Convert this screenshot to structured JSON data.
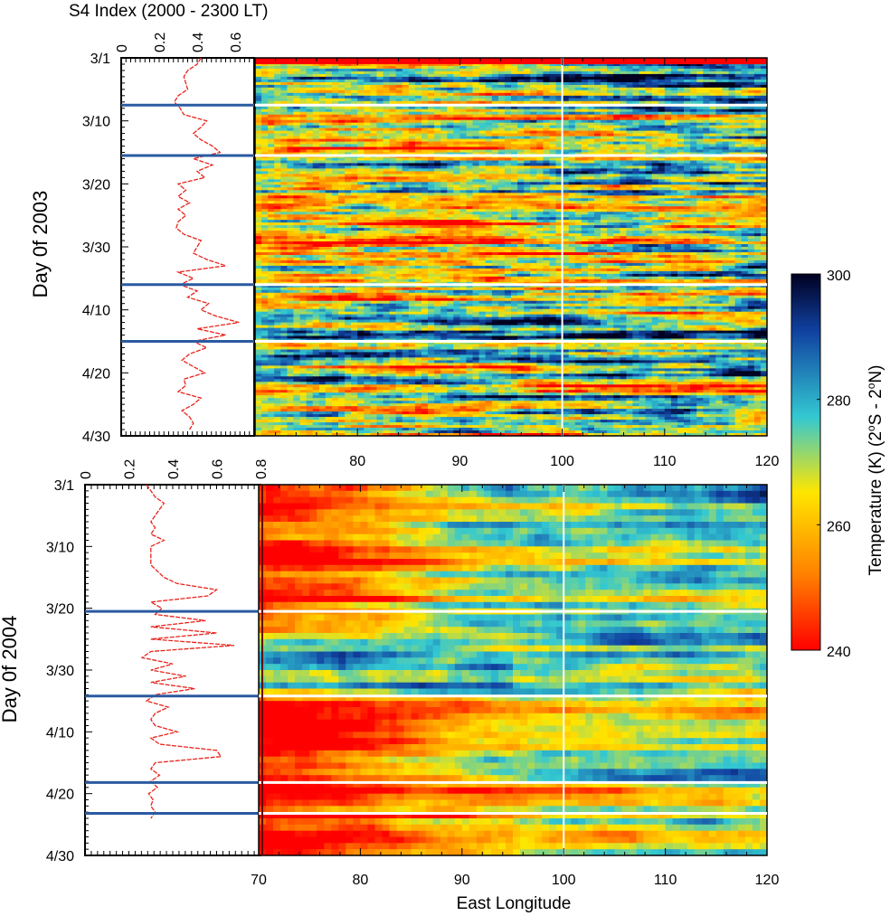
{
  "chart_data": [
    {
      "type": "line",
      "panel": "2003 S4 index",
      "title": "S4 Index (2000 - 2300 LT)",
      "xlabel": "S4 Index (2000 - 2300 LT)",
      "ylabel": "Day 0f 2003",
      "x_ticks": [
        "0",
        "0.2",
        "0.4",
        "0.6"
      ],
      "xlim": [
        0,
        0.7
      ],
      "y_ticks": [
        "3/1",
        "3/10",
        "3/20",
        "3/30",
        "4/10",
        "4/20",
        "4/30"
      ],
      "ylim": [
        0,
        60
      ],
      "series": [
        {
          "color": "#e8231b",
          "x": [
            0.42,
            0.4,
            0.35,
            0.33,
            0.34,
            0.35,
            0.3,
            0.28,
            0.31,
            0.33,
            0.45,
            0.42,
            0.38,
            0.42,
            0.48,
            0.52,
            0.38,
            0.48,
            0.4,
            0.44,
            0.3,
            0.34,
            0.3,
            0.36,
            0.3,
            0.34,
            0.3,
            0.29,
            0.33,
            0.42,
            0.4,
            0.38,
            0.45,
            0.55,
            0.3,
            0.38,
            0.31,
            0.4,
            0.35,
            0.46,
            0.42,
            0.5,
            0.62,
            0.4,
            0.55,
            0.38,
            0.45,
            0.36,
            0.32,
            0.38,
            0.44,
            0.33,
            0.34,
            0.3,
            0.42,
            0.38,
            0.32,
            0.36,
            0.38,
            0.36
          ],
          "y": [
            0,
            1,
            2,
            3,
            4,
            5,
            6,
            7,
            8,
            9,
            10,
            11,
            12,
            13,
            14,
            15,
            16,
            17,
            18,
            19,
            20,
            21,
            22,
            23,
            24,
            25,
            26,
            27,
            28,
            29,
            30,
            31,
            32,
            33,
            34,
            35,
            36,
            37,
            38,
            39,
            40,
            41,
            42,
            43,
            44,
            45,
            46,
            47,
            48,
            49,
            50,
            51,
            52,
            53,
            54,
            55,
            56,
            57,
            58,
            59
          ]
        }
      ],
      "marker_days": [
        7.5,
        15.5,
        36,
        45
      ]
    },
    {
      "type": "heatmap",
      "panel": "2003 temperature",
      "xlabel": "",
      "ylabel": "",
      "x_ticks": [
        "80",
        "90",
        "100",
        "110",
        "120"
      ],
      "xlim": [
        70,
        120
      ],
      "ylim": [
        0,
        60
      ],
      "marker_days": [
        7.5,
        15.5,
        36,
        45
      ],
      "reference_longitude": 100
    },
    {
      "type": "line",
      "panel": "2004 S4 index",
      "xlabel": "",
      "ylabel": "Day 0f 2004",
      "x_ticks": [
        "0",
        "0.2",
        "0.4",
        "0.6",
        "0.8"
      ],
      "xlim": [
        0,
        0.8
      ],
      "y_ticks": [
        "3/1",
        "3/10",
        "3/20",
        "3/30",
        "4/10",
        "4/20",
        "4/30"
      ],
      "ylim": [
        0,
        60
      ],
      "series": [
        {
          "color": "#e8231b",
          "x": [
            0.28,
            0.3,
            0.32,
            0.36,
            0.34,
            0.32,
            0.3,
            0.32,
            0.3,
            0.36,
            0.3,
            0.3,
            0.3,
            0.3,
            0.33,
            0.36,
            0.42,
            0.6,
            0.56,
            0.3,
            0.35,
            0.32,
            0.55,
            0.3,
            0.6,
            0.3,
            0.68,
            0.3,
            0.26,
            0.4,
            0.3,
            0.46,
            0.3,
            0.5,
            0.32,
            0.28,
            0.38,
            0.32,
            0.3,
            0.32,
            0.42,
            0.3,
            0.34,
            0.6,
            0.62,
            0.32,
            0.3,
            0.34,
            0.3,
            0.33,
            0.29,
            0.31,
            0.3,
            0.32,
            0.3
          ],
          "y": [
            0,
            1,
            2,
            3,
            4,
            5,
            6,
            7,
            8,
            9,
            10,
            11,
            12,
            13,
            14,
            15,
            16,
            17,
            18,
            19,
            20,
            21,
            22,
            23,
            24,
            25,
            26,
            27,
            28,
            29,
            30,
            31,
            32,
            33,
            34,
            35,
            36,
            37,
            38,
            39,
            40,
            41,
            42,
            43,
            44,
            45,
            46,
            47,
            48,
            49,
            50,
            51,
            52,
            53,
            54
          ]
        }
      ],
      "marker_days": [
        20.5,
        34.2,
        48.2,
        53.2
      ]
    },
    {
      "type": "heatmap",
      "panel": "2004 temperature",
      "xlabel": "East Longitude",
      "ylabel": "",
      "x_ticks": [
        "70",
        "80",
        "90",
        "100",
        "110",
        "120"
      ],
      "xlim": [
        70,
        120
      ],
      "ylim": [
        0,
        60
      ],
      "marker_days": [
        20.5,
        34.2,
        48.2,
        53.2
      ],
      "reference_longitude": 100
    },
    {
      "type": "colorbar",
      "label": "Temperature (K) (2°S - 2°N)",
      "ticks": [
        "240",
        "260",
        "280",
        "300"
      ],
      "range": [
        240,
        300
      ],
      "colormap": [
        "#ff0000",
        "#ff8000",
        "#ffe600",
        "#33c8d2",
        "#1040a0",
        "#000020"
      ]
    }
  ],
  "labels": {
    "top_axis_title": "S4 Index (2000 - 2300 LT)",
    "y_title_2003": "Day 0f 2003",
    "y_title_2004": "Day 0f 2004",
    "x_title_bottom": "East Longitude",
    "colorbar_title": "Temperature (K) (2",
    "colorbar_title_o1": "o",
    "colorbar_title_mid": "S - 2",
    "colorbar_title_o2": "o",
    "colorbar_title_end": "N)"
  }
}
